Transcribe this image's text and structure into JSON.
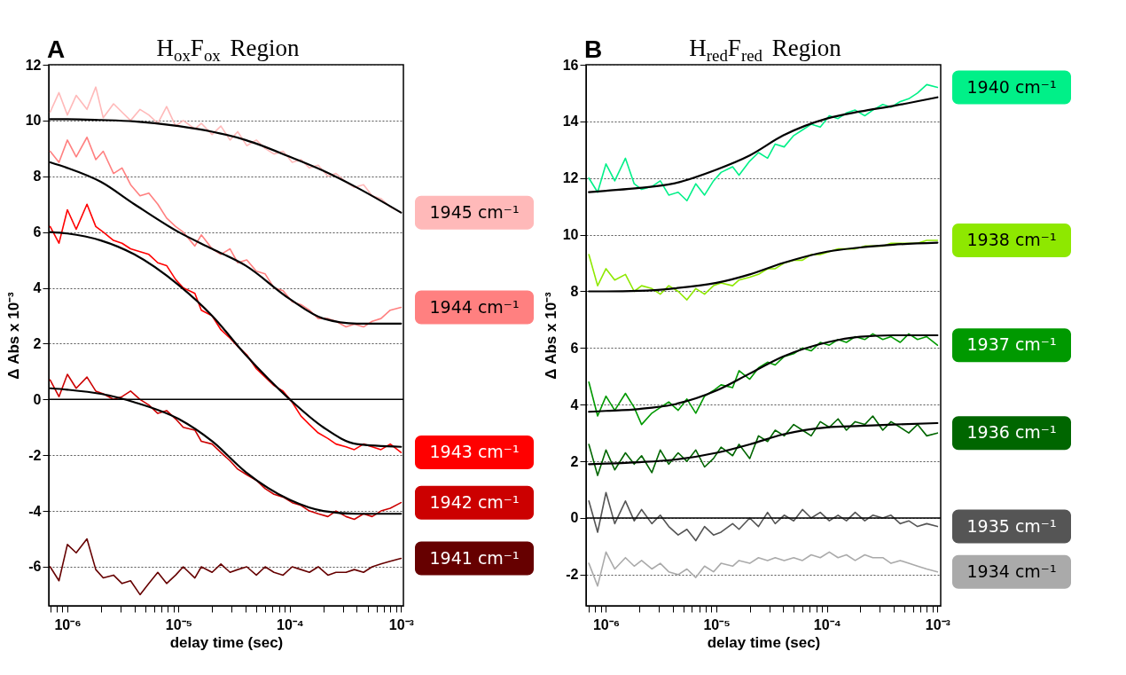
{
  "chart_data": [
    {
      "type": "line",
      "title": "H$_{ox}$F$_{ox}$ Region",
      "xlabel": "delay time (sec)",
      "ylabel": "Δ Abs x 10⁻³",
      "annotations": [
        "A"
      ],
      "log": "x",
      "grid": "y",
      "legend": "right",
      "xlim": [
        6.8e-07,
        0.00105
      ],
      "ylim": [
        -7.4,
        12
      ],
      "xticks": [
        {
          "value": 7e-07,
          "label": null
        },
        {
          "value": 8e-07,
          "label": null
        },
        {
          "value": 9e-07,
          "label": null
        },
        {
          "value": 1e-06,
          "label": "10⁻⁶"
        },
        {
          "value": 2e-06,
          "label": null
        },
        {
          "value": 3e-06,
          "label": null
        },
        {
          "value": 4e-06,
          "label": null
        },
        {
          "value": 5e-06,
          "label": null
        },
        {
          "value": 6e-06,
          "label": null
        },
        {
          "value": 7e-06,
          "label": null
        },
        {
          "value": 8e-06,
          "label": null
        },
        {
          "value": 9e-06,
          "label": null
        },
        {
          "value": 1e-05,
          "label": "10⁻⁵"
        },
        {
          "value": 2e-05,
          "label": null
        },
        {
          "value": 3e-05,
          "label": null
        },
        {
          "value": 4e-05,
          "label": null
        },
        {
          "value": 5e-05,
          "label": null
        },
        {
          "value": 6e-05,
          "label": null
        },
        {
          "value": 7e-05,
          "label": null
        },
        {
          "value": 8e-05,
          "label": null
        },
        {
          "value": 9e-05,
          "label": null
        },
        {
          "value": 0.0001,
          "label": "10⁻⁴"
        },
        {
          "value": 0.0002,
          "label": null
        },
        {
          "value": 0.0003,
          "label": null
        },
        {
          "value": 0.0004,
          "label": null
        },
        {
          "value": 0.0005,
          "label": null
        },
        {
          "value": 0.0006,
          "label": null
        },
        {
          "value": 0.0007,
          "label": null
        },
        {
          "value": 0.0008,
          "label": null
        },
        {
          "value": 0.0009,
          "label": null
        },
        {
          "value": 0.001,
          "label": "10⁻³"
        }
      ],
      "yticks": [
        -6,
        -4,
        -2,
        0,
        2,
        4,
        6,
        8,
        10,
        12
      ],
      "ref_lines": [
        {
          "axis": "y",
          "value": 0,
          "color": "#000000",
          "line_style": "solid"
        }
      ],
      "x": [
        7e-07,
        8.4e-07,
        1e-06,
        1.2e-06,
        1.5e-06,
        1.8e-06,
        2.1e-06,
        2.6e-06,
        3.1e-06,
        3.7e-06,
        4.5e-06,
        5.4e-06,
        6.5e-06,
        7.8e-06,
        9.4e-06,
        1.1e-05,
        1.4e-05,
        1.6e-05,
        2e-05,
        2.4e-05,
        2.9e-05,
        3.4e-05,
        4.1e-05,
        5e-05,
        6e-05,
        7.2e-05,
        8.7e-05,
        0.000105,
        0.000126,
        0.00015,
        0.00018,
        0.00022,
        0.00026,
        0.00032,
        0.00038,
        0.00046,
        0.00055,
        0.00066,
        0.0008,
        0.001
      ],
      "series": [
        {
          "name": "1945 cm⁻¹",
          "color": "#ffb9b9",
          "values": [
            10.3,
            11.0,
            10.2,
            10.9,
            10.4,
            11.2,
            10.1,
            10.6,
            10.3,
            10.0,
            10.4,
            10.2,
            9.9,
            10.5,
            9.8,
            10.0,
            9.7,
            9.9,
            9.5,
            9.8,
            9.3,
            9.6,
            9.1,
            9.3,
            9.0,
            8.8,
            8.9,
            8.5,
            8.6,
            8.3,
            8.4,
            8.0,
            8.1,
            7.8,
            7.6,
            7.7,
            7.3,
            7.2,
            6.9,
            6.7
          ]
        },
        {
          "name": "1944 cm⁻¹",
          "color": "#ff8080",
          "values": [
            8.9,
            8.5,
            9.3,
            8.7,
            9.4,
            8.6,
            8.9,
            8.1,
            8.3,
            7.7,
            7.3,
            7.4,
            7.0,
            6.5,
            6.2,
            6.0,
            5.5,
            5.9,
            5.4,
            5.2,
            5.4,
            4.9,
            5.0,
            4.6,
            4.5,
            4.0,
            3.9,
            3.5,
            3.4,
            3.2,
            2.9,
            2.9,
            2.8,
            2.6,
            2.7,
            2.6,
            2.8,
            2.9,
            3.2,
            3.3
          ]
        },
        {
          "name": "1943 cm⁻¹",
          "color": "#ff0000",
          "values": [
            6.2,
            5.6,
            6.8,
            6.1,
            7.0,
            6.2,
            6.0,
            5.7,
            5.6,
            5.4,
            5.3,
            5.2,
            4.9,
            4.8,
            4.3,
            4.0,
            3.8,
            3.2,
            3.0,
            2.5,
            2.2,
            1.9,
            1.6,
            1.1,
            0.8,
            0.5,
            0.3,
            -0.1,
            -0.6,
            -0.9,
            -1.2,
            -1.4,
            -1.6,
            -1.7,
            -1.8,
            -1.6,
            -1.7,
            -1.8,
            -1.6,
            -1.9
          ]
        },
        {
          "name": "1942 cm⁻¹",
          "color": "#cc0000",
          "values": [
            0.7,
            0.1,
            0.9,
            0.4,
            0.8,
            0.3,
            0.2,
            0.0,
            0.1,
            0.3,
            0.0,
            -0.2,
            -0.5,
            -0.4,
            -0.7,
            -1.0,
            -1.1,
            -1.5,
            -1.6,
            -1.9,
            -2.2,
            -2.5,
            -2.7,
            -2.9,
            -3.2,
            -3.4,
            -3.5,
            -3.7,
            -3.8,
            -4.0,
            -4.1,
            -4.2,
            -4.0,
            -4.2,
            -4.3,
            -4.1,
            -4.2,
            -4.0,
            -3.9,
            -3.7
          ]
        },
        {
          "name": "1941 cm⁻¹",
          "color": "#660000",
          "values": [
            -6.0,
            -6.5,
            -5.2,
            -5.5,
            -5.0,
            -6.1,
            -6.4,
            -6.3,
            -6.6,
            -6.5,
            -7.0,
            -6.6,
            -6.2,
            -6.6,
            -6.3,
            -6.0,
            -6.4,
            -6.0,
            -6.2,
            -5.9,
            -6.2,
            -6.1,
            -6.0,
            -6.3,
            -6.0,
            -6.2,
            -6.3,
            -6.0,
            -6.1,
            -6.2,
            -6.0,
            -6.3,
            -6.2,
            -6.2,
            -6.1,
            -6.2,
            -6.0,
            -5.9,
            -5.8,
            -5.7
          ]
        },
        {
          "color": "#000000",
          "x": [
            7e-07,
            1e-06,
            2e-06,
            4e-06,
            1e-05,
            2e-05,
            4e-05,
            0.0001,
            0.0002,
            0.0004,
            0.001
          ],
          "values": [
            10.05,
            10.05,
            10.02,
            9.97,
            9.8,
            9.6,
            9.3,
            8.7,
            8.2,
            7.6,
            6.7
          ]
        },
        {
          "color": "#000000",
          "x": [
            7e-07,
            1e-06,
            2e-06,
            4e-06,
            1e-05,
            2e-05,
            4e-05,
            0.0001,
            0.0002,
            0.0004,
            0.001
          ],
          "values": [
            8.5,
            8.3,
            7.8,
            7.0,
            6.0,
            5.4,
            4.8,
            3.6,
            2.9,
            2.72,
            2.72
          ]
        },
        {
          "color": "#000000",
          "x": [
            7e-07,
            1e-06,
            2e-06,
            4e-06,
            1e-05,
            2e-05,
            4e-05,
            0.0001,
            0.0002,
            0.0004,
            0.001
          ],
          "values": [
            6.0,
            5.95,
            5.7,
            5.2,
            4.1,
            3.0,
            1.6,
            0.0,
            -1.0,
            -1.6,
            -1.7
          ]
        },
        {
          "color": "#000000",
          "x": [
            7e-07,
            1e-06,
            2e-06,
            4e-06,
            1e-05,
            2e-05,
            4e-05,
            0.0001,
            0.0002,
            0.0004,
            0.001
          ],
          "values": [
            0.4,
            0.35,
            0.2,
            -0.1,
            -0.7,
            -1.5,
            -2.6,
            -3.6,
            -4.0,
            -4.1,
            -4.1
          ]
        }
      ]
    },
    {
      "type": "line",
      "title": "H$_{red}$F$_{red}$ Region",
      "xlabel": "delay time (sec)",
      "ylabel": "Δ Abs x 10⁻³",
      "annotations": [
        "B"
      ],
      "log": "x",
      "grid": "y",
      "legend": "right",
      "xlim": [
        6.6e-07,
        0.00107
      ],
      "ylim": [
        -3.1,
        16
      ],
      "xticks": [
        {
          "value": 7e-07,
          "label": null
        },
        {
          "value": 8e-07,
          "label": null
        },
        {
          "value": 9e-07,
          "label": null
        },
        {
          "value": 1e-06,
          "label": "10⁻⁶"
        },
        {
          "value": 2e-06,
          "label": null
        },
        {
          "value": 3e-06,
          "label": null
        },
        {
          "value": 4e-06,
          "label": null
        },
        {
          "value": 5e-06,
          "label": null
        },
        {
          "value": 6e-06,
          "label": null
        },
        {
          "value": 7e-06,
          "label": null
        },
        {
          "value": 8e-06,
          "label": null
        },
        {
          "value": 9e-06,
          "label": null
        },
        {
          "value": 1e-05,
          "label": "10⁻⁵"
        },
        {
          "value": 2e-05,
          "label": null
        },
        {
          "value": 3e-05,
          "label": null
        },
        {
          "value": 4e-05,
          "label": null
        },
        {
          "value": 5e-05,
          "label": null
        },
        {
          "value": 6e-05,
          "label": null
        },
        {
          "value": 7e-05,
          "label": null
        },
        {
          "value": 8e-05,
          "label": null
        },
        {
          "value": 9e-05,
          "label": null
        },
        {
          "value": 0.0001,
          "label": "10⁻⁴"
        },
        {
          "value": 0.0002,
          "label": null
        },
        {
          "value": 0.0003,
          "label": null
        },
        {
          "value": 0.0004,
          "label": null
        },
        {
          "value": 0.0005,
          "label": null
        },
        {
          "value": 0.0006,
          "label": null
        },
        {
          "value": 0.0007,
          "label": null
        },
        {
          "value": 0.0008,
          "label": null
        },
        {
          "value": 0.0009,
          "label": null
        },
        {
          "value": 0.001,
          "label": "10⁻³"
        }
      ],
      "yticks": [
        -2,
        0,
        2,
        4,
        6,
        8,
        10,
        12,
        14,
        16
      ],
      "ref_lines": [
        {
          "axis": "y",
          "value": 0,
          "color": "#000000",
          "line_style": "solid"
        }
      ],
      "x": [
        7e-07,
        8.4e-07,
        1e-06,
        1.2e-06,
        1.5e-06,
        1.8e-06,
        2.1e-06,
        2.6e-06,
        3.1e-06,
        3.7e-06,
        4.5e-06,
        5.4e-06,
        6.5e-06,
        7.8e-06,
        9.4e-06,
        1.1e-05,
        1.4e-05,
        1.6e-05,
        2e-05,
        2.4e-05,
        2.9e-05,
        3.4e-05,
        4.1e-05,
        5e-05,
        6e-05,
        7.2e-05,
        8.7e-05,
        0.000105,
        0.000126,
        0.00015,
        0.00018,
        0.00022,
        0.00026,
        0.00032,
        0.00038,
        0.00046,
        0.00055,
        0.00066,
        0.0008,
        0.001
      ],
      "series": [
        {
          "name": "1940 cm⁻¹",
          "color": "#00f088",
          "values": [
            12.0,
            11.5,
            12.5,
            11.9,
            12.7,
            11.8,
            11.6,
            11.7,
            11.9,
            11.4,
            11.5,
            11.2,
            11.8,
            11.4,
            11.9,
            12.2,
            12.4,
            12.1,
            12.6,
            12.9,
            12.7,
            13.2,
            13.1,
            13.5,
            13.7,
            13.9,
            13.8,
            14.2,
            14.1,
            14.3,
            14.4,
            14.2,
            14.4,
            14.6,
            14.5,
            14.7,
            14.8,
            15.0,
            15.3,
            15.2
          ]
        },
        {
          "name": "1938 cm⁻¹",
          "color": "#8ee800",
          "values": [
            9.3,
            8.2,
            8.8,
            8.4,
            8.6,
            8.0,
            8.2,
            8.1,
            7.9,
            8.2,
            8.0,
            7.7,
            8.1,
            7.9,
            8.2,
            8.3,
            8.2,
            8.4,
            8.5,
            8.6,
            8.8,
            8.8,
            9.0,
            9.1,
            9.1,
            9.3,
            9.3,
            9.4,
            9.5,
            9.5,
            9.5,
            9.6,
            9.6,
            9.6,
            9.7,
            9.7,
            9.7,
            9.7,
            9.8,
            9.8
          ]
        },
        {
          "name": "1937 cm⁻¹",
          "color": "#009900",
          "values": [
            4.8,
            3.6,
            4.3,
            3.8,
            4.4,
            3.9,
            3.3,
            3.7,
            3.9,
            4.1,
            3.8,
            4.2,
            3.7,
            4.3,
            4.5,
            4.7,
            4.6,
            5.2,
            4.9,
            5.3,
            5.5,
            5.4,
            5.7,
            5.8,
            6.0,
            5.9,
            6.2,
            6.1,
            6.3,
            6.2,
            6.4,
            6.3,
            6.5,
            6.3,
            6.4,
            6.2,
            6.5,
            6.3,
            6.4,
            6.1
          ]
        },
        {
          "name": "1936 cm⁻¹",
          "color": "#006600",
          "values": [
            2.6,
            1.5,
            2.4,
            1.7,
            2.3,
            1.9,
            2.2,
            1.6,
            2.4,
            1.9,
            2.3,
            2.0,
            2.4,
            1.8,
            2.1,
            2.5,
            2.2,
            2.6,
            2.1,
            2.9,
            2.7,
            3.1,
            2.9,
            3.3,
            3.1,
            2.9,
            3.4,
            3.2,
            3.5,
            3.1,
            3.4,
            3.3,
            3.6,
            3.1,
            3.4,
            3.2,
            3.0,
            3.3,
            2.9,
            3.0
          ]
        },
        {
          "name": "1935 cm⁻¹",
          "color": "#555555",
          "values": [
            0.6,
            -0.5,
            0.9,
            -0.2,
            0.6,
            -0.1,
            0.3,
            -0.2,
            0.1,
            -0.3,
            -0.6,
            -0.4,
            -0.8,
            -0.3,
            -0.6,
            -0.5,
            -0.2,
            -0.4,
            0.0,
            -0.3,
            0.2,
            -0.2,
            0.1,
            -0.1,
            0.3,
            0.0,
            0.2,
            -0.1,
            0.1,
            -0.1,
            0.2,
            -0.1,
            0.1,
            0.0,
            0.1,
            -0.2,
            -0.1,
            -0.3,
            -0.2,
            -0.3
          ]
        },
        {
          "name": "1934 cm⁻¹",
          "color": "#aaaaaa",
          "values": [
            -1.6,
            -2.4,
            -1.2,
            -1.8,
            -1.4,
            -1.7,
            -1.5,
            -1.8,
            -1.6,
            -1.9,
            -2.0,
            -1.8,
            -2.1,
            -1.7,
            -1.9,
            -1.6,
            -1.7,
            -1.5,
            -1.6,
            -1.4,
            -1.5,
            -1.4,
            -1.5,
            -1.4,
            -1.5,
            -1.3,
            -1.4,
            -1.2,
            -1.4,
            -1.3,
            -1.5,
            -1.3,
            -1.4,
            -1.4,
            -1.6,
            -1.5,
            -1.6,
            -1.7,
            -1.8,
            -1.9
          ]
        },
        {
          "color": "#000000",
          "x": [
            7e-07,
            1e-06,
            2e-06,
            4e-06,
            1e-05,
            2e-05,
            4e-05,
            0.0001,
            0.0002,
            0.0004,
            0.001
          ],
          "values": [
            11.5,
            11.55,
            11.65,
            11.8,
            12.3,
            12.8,
            13.5,
            14.1,
            14.35,
            14.55,
            14.85
          ]
        },
        {
          "color": "#000000",
          "x": [
            7e-07,
            1e-06,
            2e-06,
            4e-06,
            1e-05,
            2e-05,
            4e-05,
            0.0001,
            0.0002,
            0.0004,
            0.001
          ],
          "values": [
            8.0,
            8.0,
            8.02,
            8.1,
            8.3,
            8.6,
            9.0,
            9.4,
            9.55,
            9.65,
            9.72
          ]
        },
        {
          "color": "#000000",
          "x": [
            7e-07,
            1e-06,
            2e-06,
            4e-06,
            1e-05,
            2e-05,
            4e-05,
            0.0001,
            0.0002,
            0.0004,
            0.001
          ],
          "values": [
            3.75,
            3.78,
            3.85,
            4.0,
            4.5,
            5.1,
            5.7,
            6.2,
            6.4,
            6.45,
            6.45
          ]
        },
        {
          "color": "#000000",
          "x": [
            7e-07,
            1e-06,
            2e-06,
            4e-06,
            1e-05,
            2e-05,
            4e-05,
            0.0001,
            0.0002,
            0.0004,
            0.001
          ],
          "values": [
            1.9,
            1.92,
            1.97,
            2.05,
            2.3,
            2.6,
            2.95,
            3.2,
            3.25,
            3.3,
            3.35
          ]
        }
      ]
    }
  ]
}
